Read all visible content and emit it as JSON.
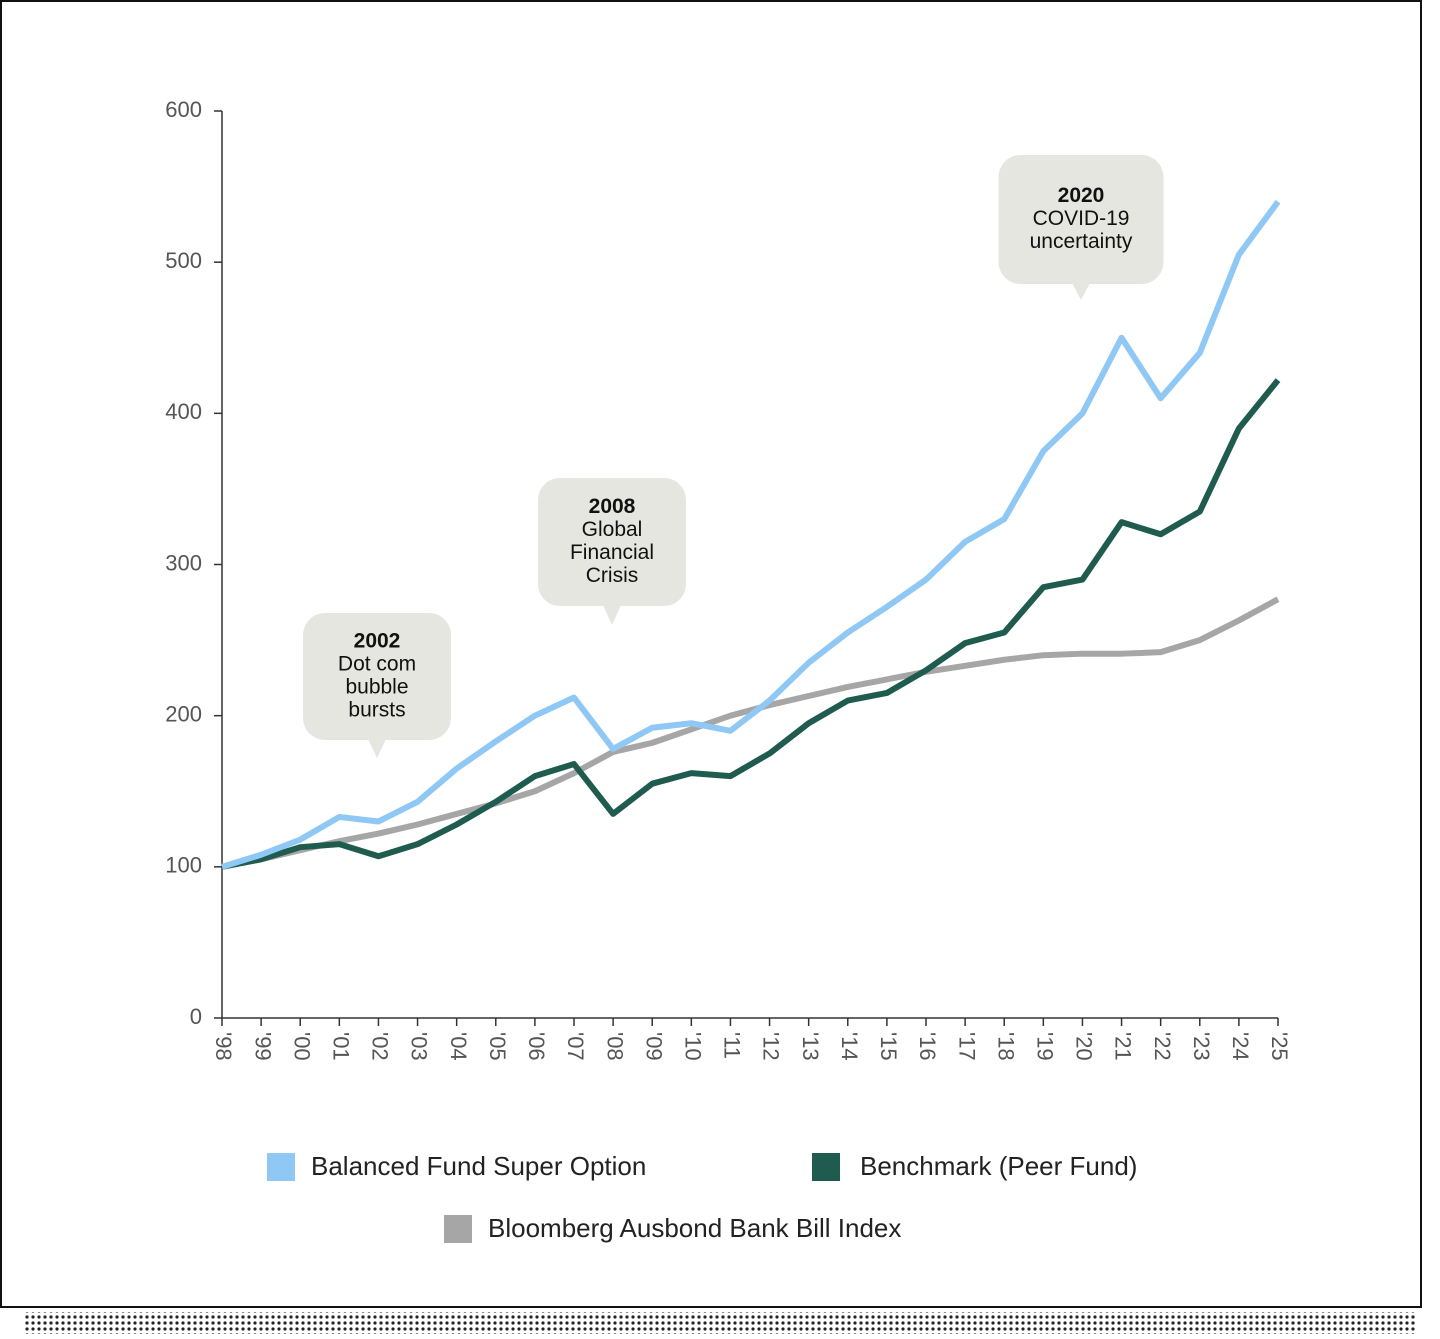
{
  "chart_data": {
    "type": "line",
    "x": [
      1998,
      1999,
      2000,
      2001,
      2002,
      2003,
      2004,
      2005,
      2006,
      2007,
      2008,
      2009,
      2010,
      2011,
      2012,
      2013,
      2014,
      2015,
      2016,
      2017,
      2018,
      2019,
      2020,
      2021,
      2022,
      2023,
      2024,
      2025
    ],
    "xlim": [
      1998,
      2025
    ],
    "xticks": [
      {
        "value": 1998,
        "label": "'98"
      },
      {
        "value": 1999,
        "label": "'99"
      },
      {
        "value": 2000,
        "label": "'00"
      },
      {
        "value": 2001,
        "label": "'01"
      },
      {
        "value": 2002,
        "label": "'02"
      },
      {
        "value": 2003,
        "label": "'03"
      },
      {
        "value": 2004,
        "label": "'04"
      },
      {
        "value": 2005,
        "label": "'05"
      },
      {
        "value": 2006,
        "label": "'06"
      },
      {
        "value": 2007,
        "label": "'07"
      },
      {
        "value": 2008,
        "label": "'08"
      },
      {
        "value": 2009,
        "label": "'09"
      },
      {
        "value": 2010,
        "label": "'10"
      },
      {
        "value": 2011,
        "label": "'11"
      },
      {
        "value": 2012,
        "label": "'12"
      },
      {
        "value": 2013,
        "label": "'13"
      },
      {
        "value": 2014,
        "label": "'14"
      },
      {
        "value": 2015,
        "label": "'15"
      },
      {
        "value": 2016,
        "label": "'16"
      },
      {
        "value": 2017,
        "label": "'17"
      },
      {
        "value": 2018,
        "label": "'18"
      },
      {
        "value": 2019,
        "label": "'19"
      },
      {
        "value": 2020,
        "label": "'20"
      },
      {
        "value": 2021,
        "label": "'21"
      },
      {
        "value": 2022,
        "label": "'22"
      },
      {
        "value": 2023,
        "label": "'23"
      },
      {
        "value": 2024,
        "label": "'24"
      },
      {
        "value": 2025,
        "label": "'25"
      }
    ],
    "ylim": [
      0,
      600
    ],
    "yticks": [
      0,
      100,
      200,
      300,
      400,
      500,
      600
    ],
    "series": [
      {
        "name": "Balanced Fund Super Option",
        "color": "#8fc8f5",
        "values": [
          100,
          108,
          118,
          133,
          130,
          143,
          165,
          183,
          200,
          212,
          178,
          192,
          195,
          190,
          210,
          235,
          255,
          272,
          290,
          315,
          330,
          375,
          400,
          450,
          410,
          440,
          505,
          540
        ]
      },
      {
        "name": "Benchmark (Peer Fund)",
        "color": "#1f5c4f",
        "values": [
          100,
          105,
          113,
          115,
          107,
          115,
          128,
          143,
          160,
          168,
          135,
          155,
          162,
          160,
          175,
          195,
          210,
          215,
          230,
          248,
          255,
          285,
          290,
          328,
          320,
          335,
          390,
          422
        ]
      },
      {
        "name": "Bloomberg Ausbond Bank Bill Index",
        "color": "#a6a6a6",
        "values": [
          100,
          105,
          111,
          117,
          122,
          128,
          135,
          142,
          150,
          162,
          176,
          182,
          191,
          200,
          207,
          213,
          219,
          224,
          229,
          233,
          237,
          240,
          241,
          241,
          242,
          250,
          263,
          277
        ]
      }
    ],
    "annotations": [
      {
        "title": "2002",
        "lines": [
          "Dot com",
          "bubble",
          "bursts"
        ]
      },
      {
        "title": "2008",
        "lines": [
          "Global",
          "Financial",
          "Crisis"
        ]
      },
      {
        "title": "2020",
        "lines": [
          "COVID-19",
          "uncertainty"
        ]
      }
    ]
  }
}
